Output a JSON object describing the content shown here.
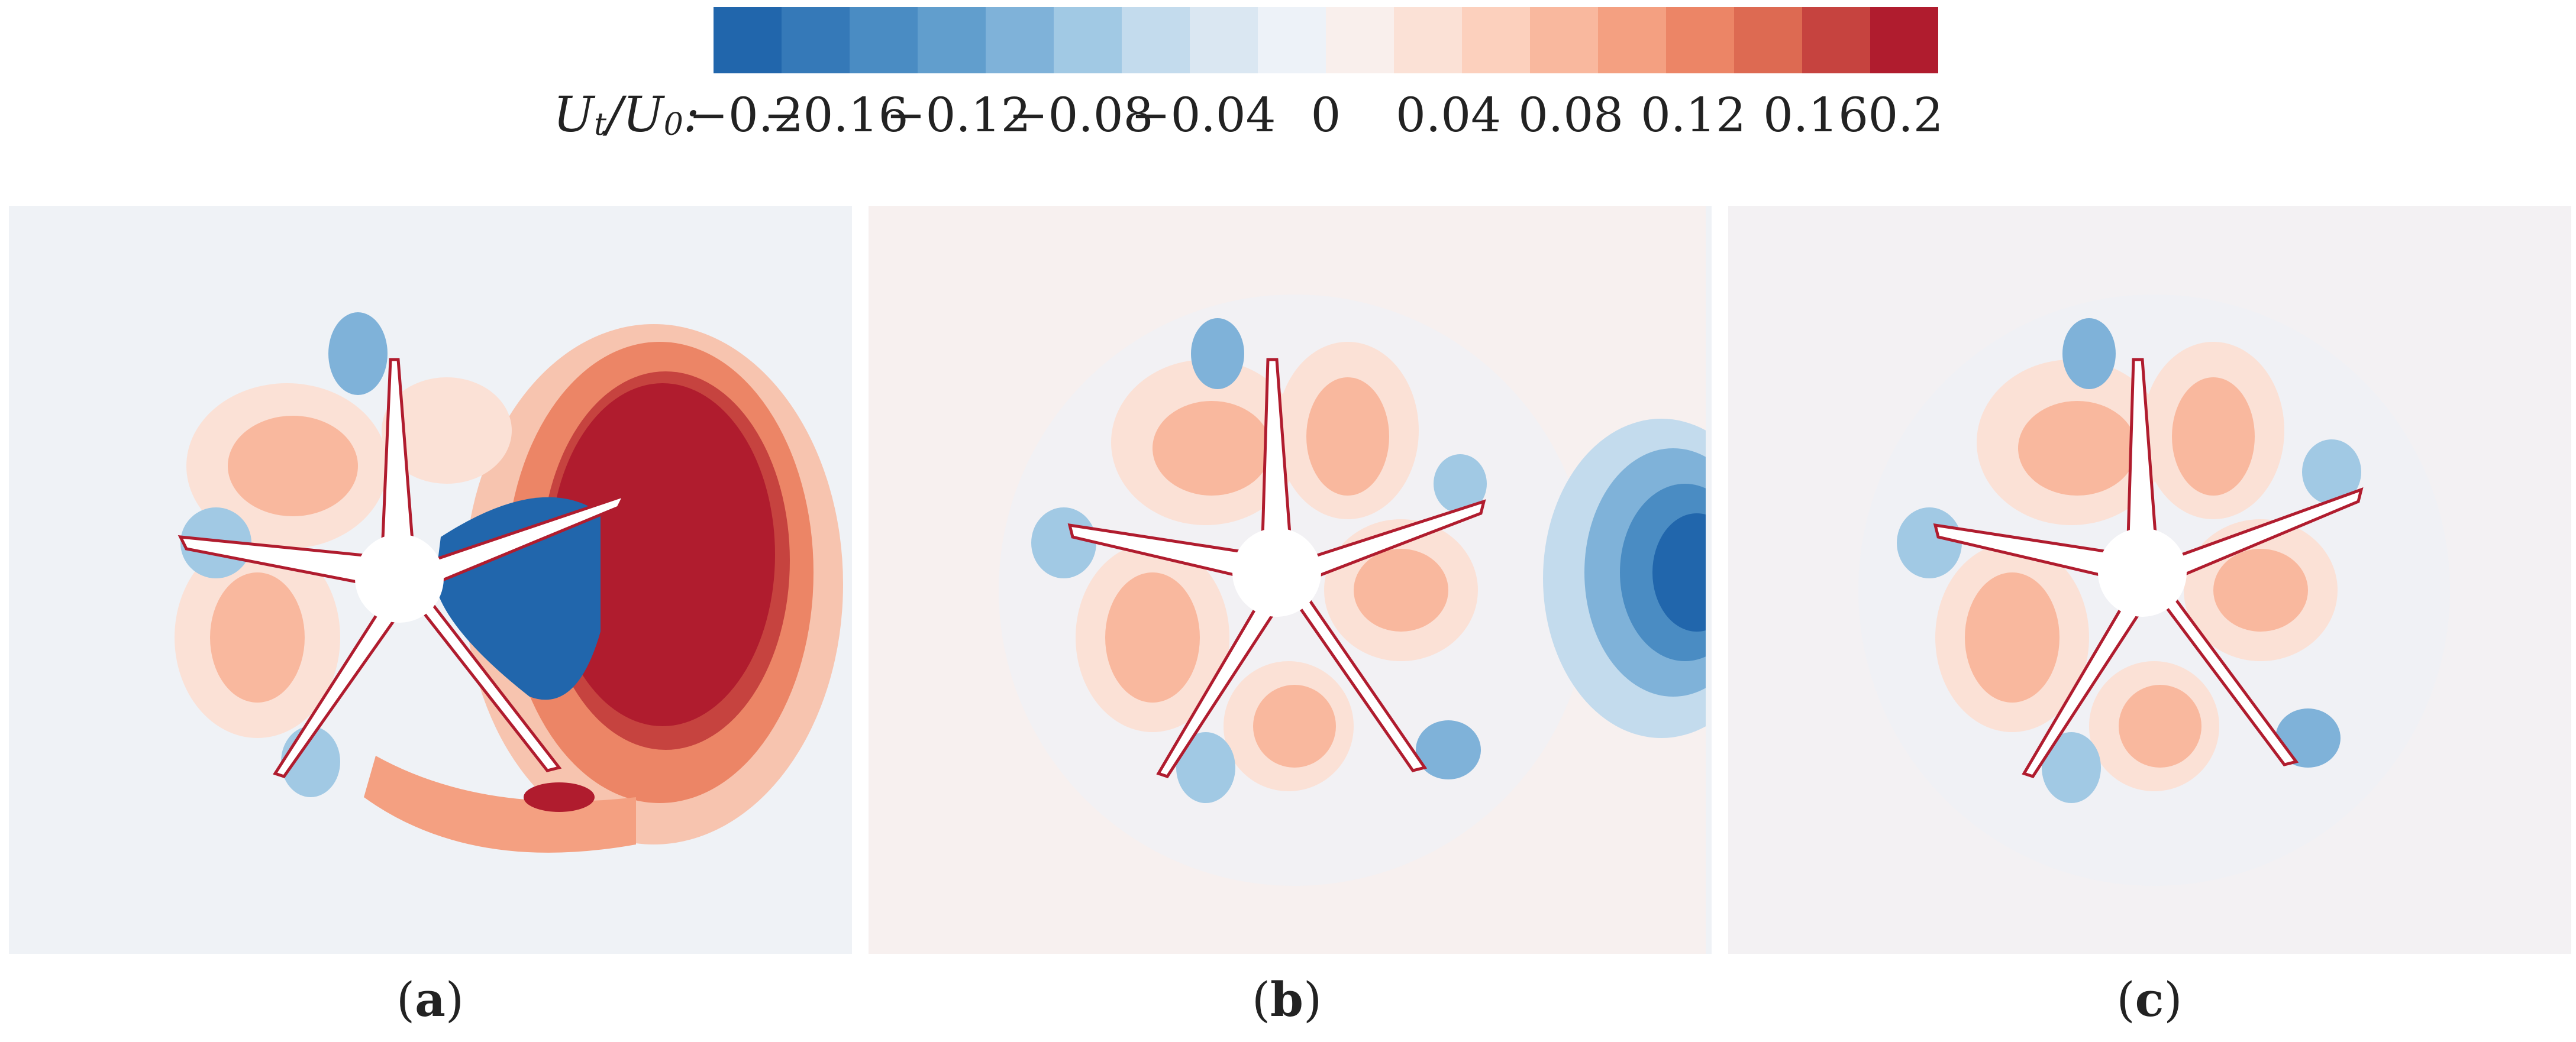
{
  "colorbar": {
    "label_main": "U",
    "label_sub1": "t",
    "label_mid": "/U",
    "label_sub2": "0",
    "label_end": ":",
    "ticks": [
      "−0.2",
      "−0.16",
      "−0.12",
      "−0.08",
      "−0.04",
      "0",
      "0.04",
      "0.08",
      "0.12",
      "0.16",
      "0.2"
    ],
    "tick_values": [
      -0.2,
      -0.16,
      -0.12,
      -0.08,
      -0.04,
      0,
      0.04,
      0.08,
      0.12,
      0.16,
      0.2
    ],
    "colors": [
      "#2166ac",
      "#3579b8",
      "#4a8cc3",
      "#619ecd",
      "#7fb2d9",
      "#a1c9e4",
      "#c3dbed",
      "#dae7f2",
      "#edf2f8",
      "#f9efec",
      "#fbe1d6",
      "#fcd0bd",
      "#f9b89e",
      "#f4a081",
      "#ec8566",
      "#dd6a52",
      "#c6433f",
      "#b01c2e"
    ]
  },
  "panels": [
    {
      "caption": "a",
      "background": "#eff2f6"
    },
    {
      "caption": "b",
      "background": "#f7f0ef"
    },
    {
      "caption": "c",
      "background": "#f3f1f3"
    }
  ]
}
